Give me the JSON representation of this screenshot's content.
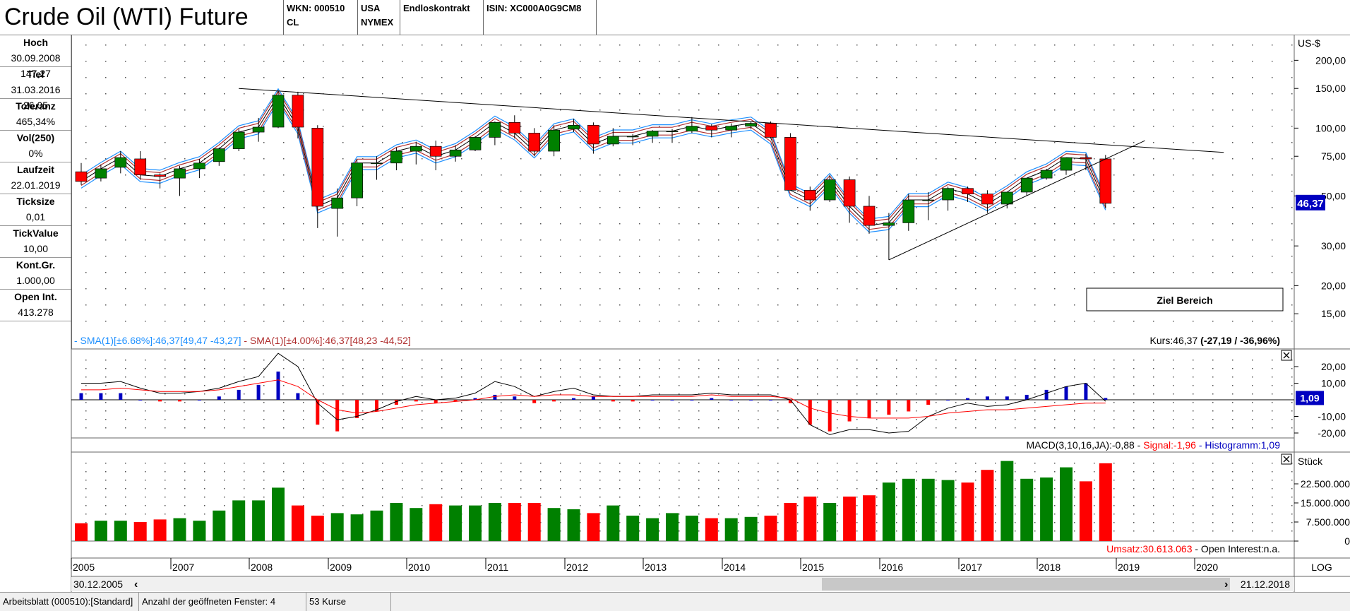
{
  "header": {
    "title": "Crude Oil (WTI) Future",
    "wkn_line1": "WKN: 000510",
    "wkn_line2": "CL",
    "country_line1": "USA",
    "country_line2": "NYMEX",
    "contract": "Endloskontrakt",
    "isin": "ISIN: XC000A0G9CM8"
  },
  "sidebar": [
    {
      "label": "Hoch",
      "values": [
        "30.09.2008",
        "147,27"
      ]
    },
    {
      "label": "Tief",
      "values": [
        "31.03.2016",
        "26,05"
      ]
    },
    {
      "label": "Toleranz",
      "values": [
        "465,34%"
      ]
    },
    {
      "label": "Vol(250)",
      "values": [
        "0%"
      ]
    },
    {
      "label": "Laufzeit",
      "values": [
        "22.01.2019"
      ]
    },
    {
      "label": "Ticksize",
      "values": [
        "0,01"
      ]
    },
    {
      "label": "TickValue",
      "values": [
        "10,00"
      ]
    },
    {
      "label": "Kont.Gr.",
      "values": [
        "1.000,00"
      ]
    },
    {
      "label": "Open Int.",
      "values": [
        "413.278"
      ]
    }
  ],
  "price_panel": {
    "unit_label": "US-$",
    "ticks": [
      "200,00",
      "150,00",
      "100,00",
      "75,00",
      "50,00",
      "30,00",
      "20,00",
      "15,00"
    ],
    "current_price_badge": "46,37",
    "legend_sma1": "SMA(1)[±6.68%]:46,37[49,47 -43,27]",
    "legend_sma2": "SMA(1)[±4.00%]:46,37[48,23 -44,52]",
    "kurs_prefix": "Kurs:46,37 ",
    "kurs_change": "(-27,19 / -36,96%)",
    "annotation": "Ziel Bereich",
    "colors": {
      "up": "#008000",
      "down": "#ff0000",
      "band_outer": "#1e90ff",
      "band_inner": "#b03030"
    }
  },
  "macd_panel": {
    "ticks": [
      "20,00",
      "10,00",
      "0",
      "-10,00",
      "-20,00"
    ],
    "badge": "1,09",
    "legend_prefix": "MACD(3,10,16,JA):-0,88 - ",
    "legend_signal": "Signal:-1,96",
    "legend_hist": " - Histogramm:1,09"
  },
  "volume_panel": {
    "unit_label": "Stück",
    "ticks": [
      "22.500.000",
      "15.000.000",
      "7.500.000",
      "0"
    ],
    "legend_umsatz": "Umsatz:30.613.063",
    "legend_oi": " - Open Interest:n.a."
  },
  "time_axis": {
    "years": [
      "2005",
      "2007",
      "2008",
      "2009",
      "2010",
      "2011",
      "2012",
      "2013",
      "2014",
      "2015",
      "2016",
      "2017",
      "2018",
      "2019",
      "2020"
    ],
    "scale": "LOG",
    "start_date": "30.12.2005",
    "end_date": "21.12.2018"
  },
  "statusbar": {
    "sheet": "Arbeitsblatt (000510):[Standard]",
    "windows": "Anzahl der geöffneten Fenster: 4",
    "count": "53 Kurse"
  },
  "chart_data": {
    "type": "candlestick",
    "period": "quarterly",
    "price_scale": "log",
    "ylim": [
      13,
      260
    ],
    "candles": [
      {
        "date": "2005-12",
        "open": 64,
        "high": 70,
        "low": 56,
        "close": 58
      },
      {
        "date": "2006-03",
        "open": 60,
        "high": 69,
        "low": 58,
        "close": 66
      },
      {
        "date": "2006-06",
        "open": 67,
        "high": 79,
        "low": 63,
        "close": 74
      },
      {
        "date": "2006-09",
        "open": 73,
        "high": 79,
        "low": 59,
        "close": 62
      },
      {
        "date": "2006-12",
        "open": 62,
        "high": 63,
        "low": 54,
        "close": 61
      },
      {
        "date": "2007-03",
        "open": 60,
        "high": 68,
        "low": 50,
        "close": 66
      },
      {
        "date": "2007-06",
        "open": 66,
        "high": 73,
        "low": 60,
        "close": 70
      },
      {
        "date": "2007-09",
        "open": 71,
        "high": 82,
        "low": 68,
        "close": 81
      },
      {
        "date": "2007-12",
        "open": 81,
        "high": 99,
        "low": 79,
        "close": 96
      },
      {
        "date": "2008-03",
        "open": 96,
        "high": 111,
        "low": 87,
        "close": 101
      },
      {
        "date": "2008-06",
        "open": 101,
        "high": 147,
        "low": 100,
        "close": 140
      },
      {
        "date": "2008-09",
        "open": 140,
        "high": 145,
        "low": 90,
        "close": 101
      },
      {
        "date": "2008-12",
        "open": 100,
        "high": 103,
        "low": 36,
        "close": 45
      },
      {
        "date": "2009-03",
        "open": 44,
        "high": 54,
        "low": 33,
        "close": 49
      },
      {
        "date": "2009-06",
        "open": 49,
        "high": 73,
        "low": 45,
        "close": 70
      },
      {
        "date": "2009-09",
        "open": 70,
        "high": 75,
        "low": 59,
        "close": 70
      },
      {
        "date": "2009-12",
        "open": 70,
        "high": 82,
        "low": 65,
        "close": 79
      },
      {
        "date": "2010-03",
        "open": 79,
        "high": 87,
        "low": 69,
        "close": 83
      },
      {
        "date": "2010-06",
        "open": 83,
        "high": 88,
        "low": 65,
        "close": 75
      },
      {
        "date": "2010-09",
        "open": 75,
        "high": 84,
        "low": 71,
        "close": 80
      },
      {
        "date": "2010-12",
        "open": 80,
        "high": 92,
        "low": 79,
        "close": 91
      },
      {
        "date": "2011-03",
        "open": 91,
        "high": 107,
        "low": 84,
        "close": 106
      },
      {
        "date": "2011-06",
        "open": 106,
        "high": 114,
        "low": 90,
        "close": 95
      },
      {
        "date": "2011-09",
        "open": 95,
        "high": 100,
        "low": 75,
        "close": 79
      },
      {
        "date": "2011-12",
        "open": 79,
        "high": 103,
        "low": 75,
        "close": 98
      },
      {
        "date": "2012-03",
        "open": 99,
        "high": 110,
        "low": 96,
        "close": 103
      },
      {
        "date": "2012-06",
        "open": 103,
        "high": 106,
        "low": 77,
        "close": 85
      },
      {
        "date": "2012-09",
        "open": 85,
        "high": 100,
        "low": 83,
        "close": 92
      },
      {
        "date": "2012-12",
        "open": 92,
        "high": 94,
        "low": 84,
        "close": 92
      },
      {
        "date": "2013-03",
        "open": 92,
        "high": 98,
        "low": 86,
        "close": 97
      },
      {
        "date": "2013-06",
        "open": 97,
        "high": 99,
        "low": 86,
        "close": 97
      },
      {
        "date": "2013-09",
        "open": 97,
        "high": 112,
        "low": 95,
        "close": 102
      },
      {
        "date": "2013-12",
        "open": 102,
        "high": 104,
        "low": 91,
        "close": 98
      },
      {
        "date": "2014-03",
        "open": 98,
        "high": 105,
        "low": 91,
        "close": 102
      },
      {
        "date": "2014-06",
        "open": 102,
        "high": 107,
        "low": 99,
        "close": 105
      },
      {
        "date": "2014-09",
        "open": 105,
        "high": 107,
        "low": 90,
        "close": 91
      },
      {
        "date": "2014-12",
        "open": 91,
        "high": 95,
        "low": 53,
        "close": 53
      },
      {
        "date": "2015-03",
        "open": 53,
        "high": 55,
        "low": 43,
        "close": 48
      },
      {
        "date": "2015-06",
        "open": 48,
        "high": 62,
        "low": 47,
        "close": 59
      },
      {
        "date": "2015-09",
        "open": 59,
        "high": 61,
        "low": 38,
        "close": 45
      },
      {
        "date": "2015-12",
        "open": 45,
        "high": 50,
        "low": 34,
        "close": 37
      },
      {
        "date": "2016-03",
        "open": 37,
        "high": 42,
        "low": 26,
        "close": 38
      },
      {
        "date": "2016-06",
        "open": 38,
        "high": 51,
        "low": 35,
        "close": 48
      },
      {
        "date": "2016-09",
        "open": 48,
        "high": 52,
        "low": 39,
        "close": 48
      },
      {
        "date": "2016-12",
        "open": 48,
        "high": 55,
        "low": 43,
        "close": 54
      },
      {
        "date": "2017-03",
        "open": 54,
        "high": 55,
        "low": 47,
        "close": 51
      },
      {
        "date": "2017-06",
        "open": 51,
        "high": 53,
        "low": 42,
        "close": 46
      },
      {
        "date": "2017-09",
        "open": 46,
        "high": 52,
        "low": 44,
        "close": 52
      },
      {
        "date": "2017-12",
        "open": 52,
        "high": 60,
        "low": 50,
        "close": 60
      },
      {
        "date": "2018-03",
        "open": 60,
        "high": 66,
        "low": 59,
        "close": 65
      },
      {
        "date": "2018-06",
        "open": 65,
        "high": 74,
        "low": 62,
        "close": 74
      },
      {
        "date": "2018-09",
        "open": 74,
        "high": 77,
        "low": 65,
        "close": 73
      },
      {
        "date": "2018-12",
        "open": 73,
        "high": 76,
        "low": 44,
        "close": 46.37
      }
    ],
    "macd": {
      "histogram": [
        4,
        4,
        4,
        0,
        -1,
        -1,
        0,
        2,
        6,
        9,
        17,
        4,
        -15,
        -19,
        -11,
        -7,
        -3,
        -1,
        -2,
        -1,
        1,
        3,
        2,
        -2,
        -1,
        1,
        2,
        -1,
        -1,
        0,
        0,
        0,
        1,
        0,
        0,
        0,
        -2,
        -15,
        -19,
        -13,
        -11,
        -9,
        -7,
        -3,
        0,
        1,
        2,
        2,
        3,
        6,
        8,
        10,
        1.09
      ],
      "macd": [
        10,
        10,
        11,
        7,
        4,
        4,
        5,
        7,
        11,
        14,
        28,
        20,
        -2,
        -12,
        -10,
        -6,
        -1,
        2,
        0,
        1,
        4,
        11,
        8,
        2,
        5,
        7,
        3,
        2,
        2,
        3,
        3,
        3,
        4,
        3,
        3,
        3,
        0,
        -15,
        -21,
        -18,
        -18,
        -20,
        -19,
        -10,
        -5,
        -2,
        -4,
        -3,
        0,
        4,
        8,
        10,
        -0.88
      ],
      "signal": [
        6,
        6,
        7,
        6,
        5,
        5,
        5,
        6,
        8,
        10,
        12,
        8,
        0,
        -6,
        -8,
        -7,
        -5,
        -3,
        -2,
        -1,
        0,
        2,
        3,
        2,
        3,
        3,
        2,
        2,
        2,
        2,
        2,
        2,
        3,
        2,
        2,
        2,
        1,
        -5,
        -8,
        -10,
        -11,
        -11,
        -11,
        -10,
        -8,
        -7,
        -6,
        -6,
        -5,
        -4,
        -3,
        -2,
        -1.96
      ]
    },
    "volume": [
      7,
      8,
      8,
      7.5,
      8.5,
      9,
      8,
      12,
      16,
      16,
      21,
      14,
      10,
      11,
      10.5,
      12,
      15,
      13,
      14.5,
      14,
      14,
      15,
      15,
      15,
      13,
      12.5,
      11,
      14,
      10,
      9,
      11,
      10,
      9,
      9,
      9.5,
      10,
      15,
      17.5,
      15,
      17.5,
      18,
      23,
      24.5,
      24.5,
      24,
      23,
      28,
      31.5,
      24.5,
      25,
      29,
      23.5,
      30.6
    ],
    "trendlines": [
      {
        "name": "resistance",
        "from": {
          "date": "2007-12",
          "price": 150
        },
        "to": {
          "date": "2020-06",
          "price": 78
        }
      },
      {
        "name": "support",
        "from": {
          "date": "2016-03",
          "price": 26
        },
        "to": {
          "date": "2019-06",
          "price": 88
        }
      }
    ]
  }
}
